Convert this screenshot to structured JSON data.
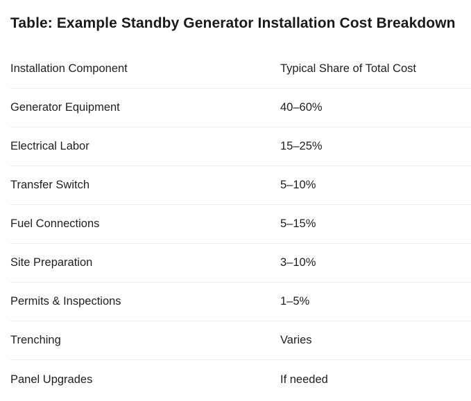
{
  "title": "Table: Example Standby Generator Installation Cost Breakdown",
  "table": {
    "headers": [
      "Installation Component",
      "Typical Share of Total Cost"
    ],
    "rows": [
      [
        "Generator Equipment",
        "40–60%"
      ],
      [
        "Electrical Labor",
        "15–25%"
      ],
      [
        "Transfer Switch",
        "5–10%"
      ],
      [
        "Fuel Connections",
        "5–15%"
      ],
      [
        "Site Preparation",
        "3–10%"
      ],
      [
        "Permits & Inspections",
        "1–5%"
      ],
      [
        "Trenching",
        "Varies"
      ],
      [
        "Panel Upgrades",
        "If needed"
      ]
    ]
  }
}
